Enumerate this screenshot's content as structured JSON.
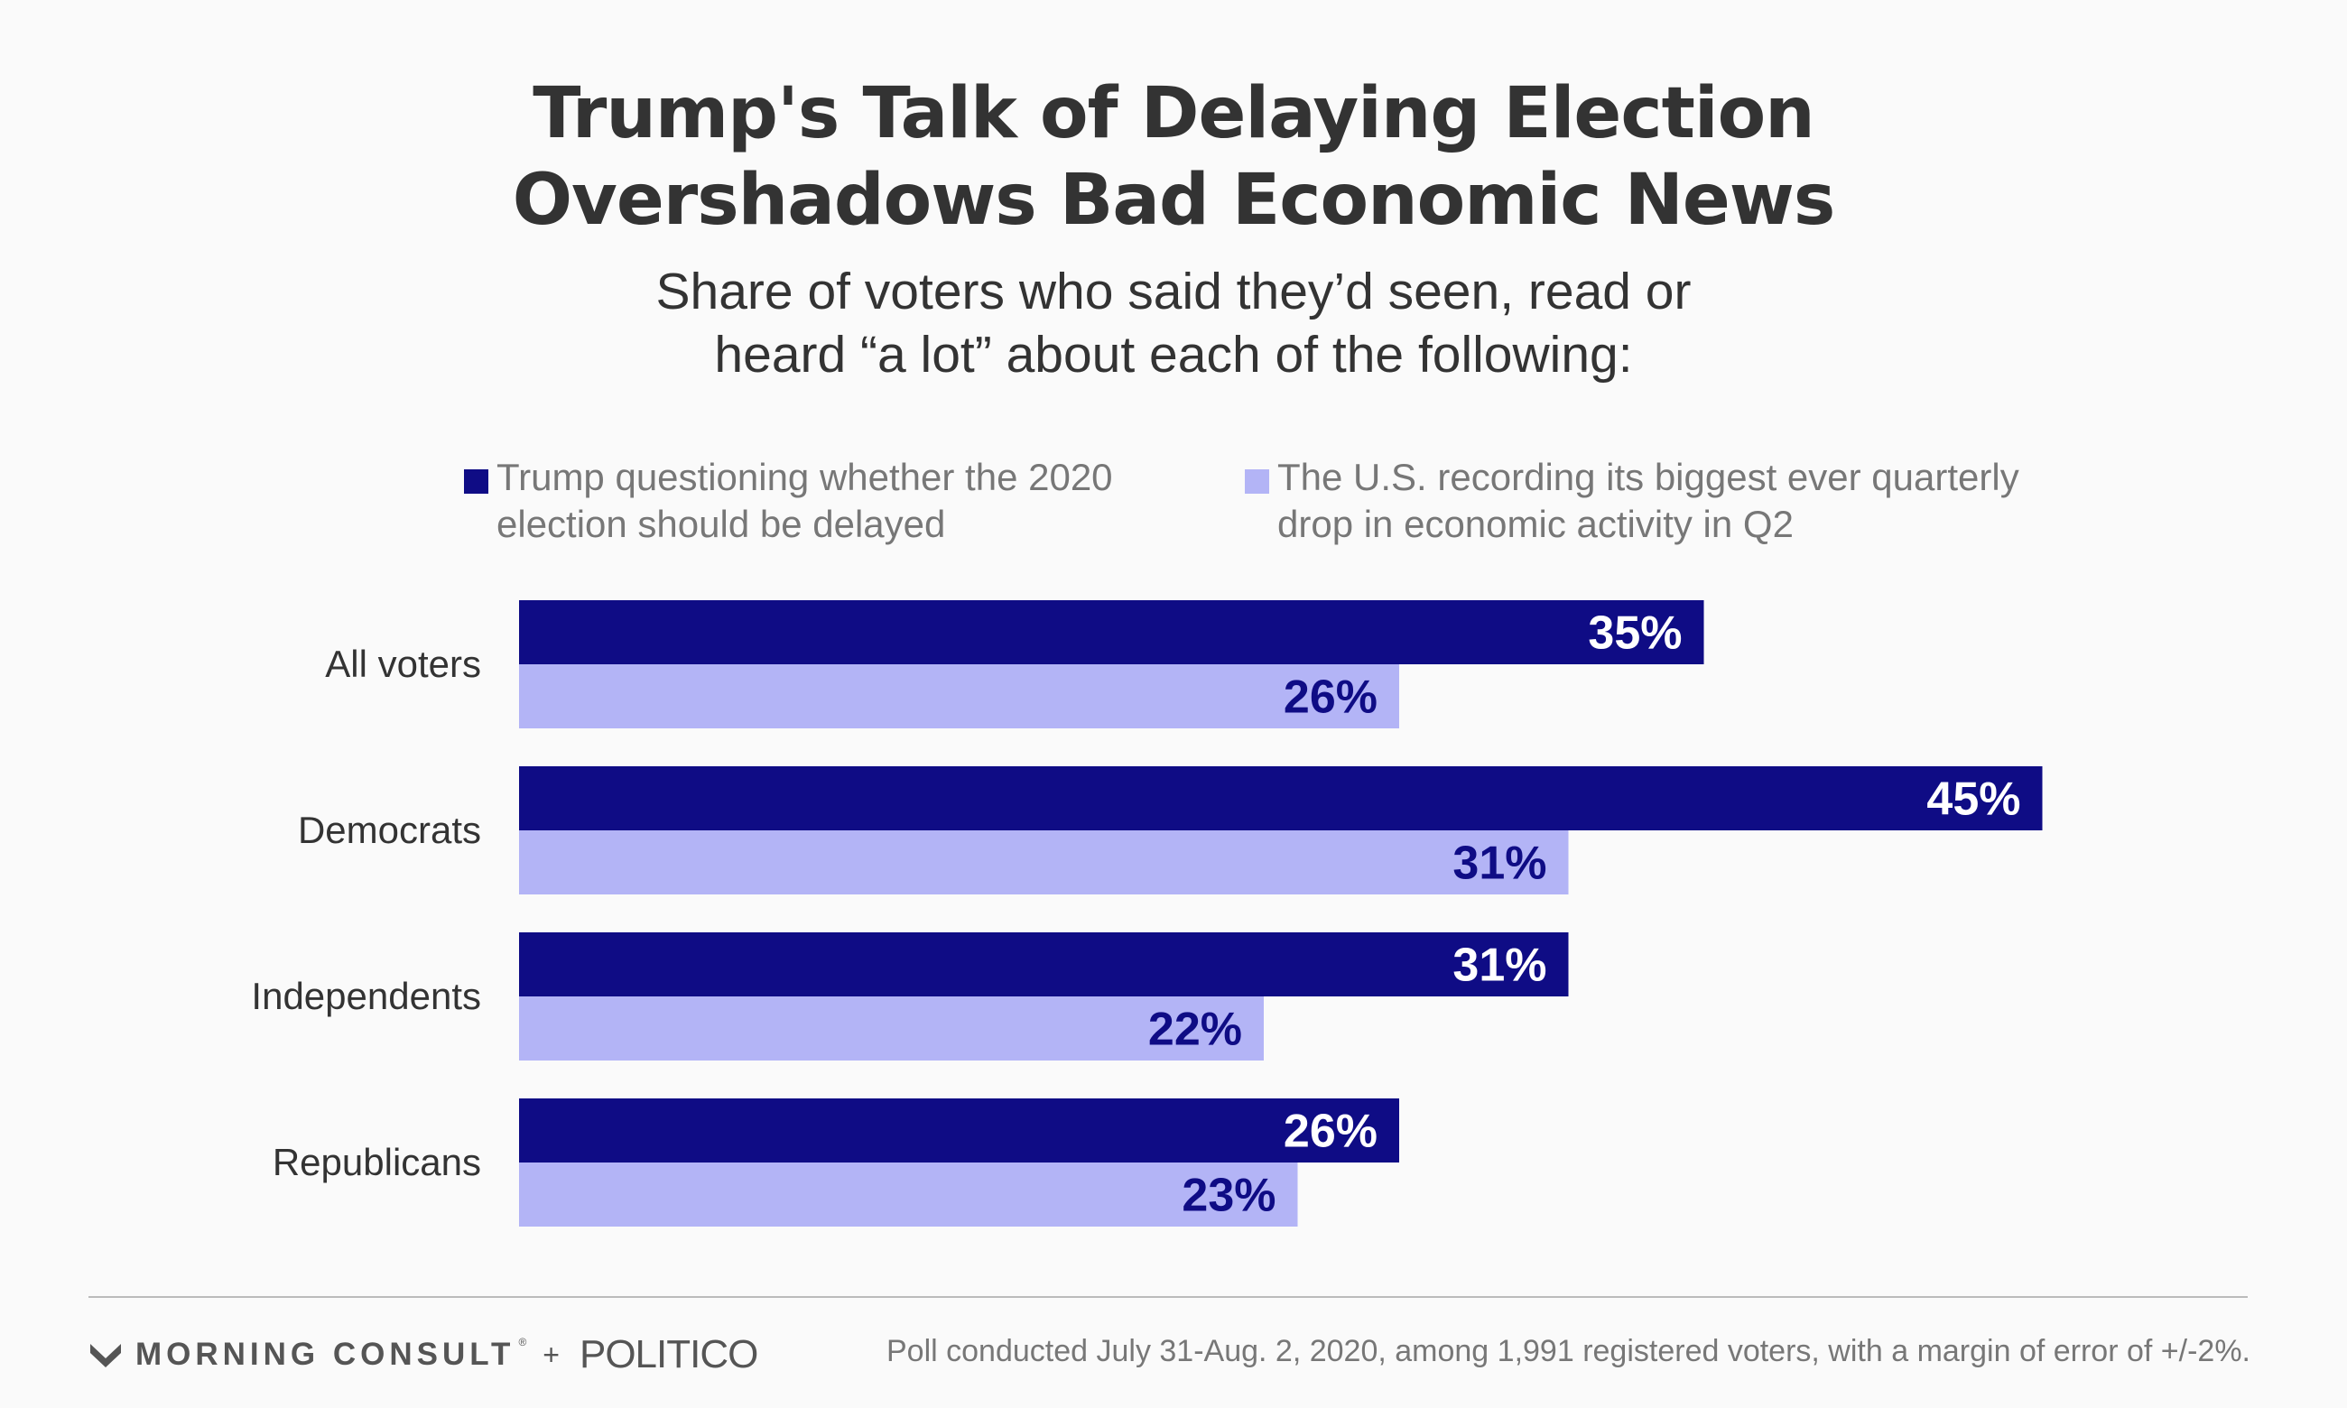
{
  "header": {
    "title_lines": [
      "Trump's Talk of Delaying Election",
      "Overshadows Bad Economic News"
    ],
    "subtitle_lines": [
      "Share of voters who said they’d seen, read or",
      "heard “a lot” about each of the following:"
    ]
  },
  "chart_data": {
    "type": "bar",
    "orientation": "horizontal",
    "categories": [
      "All voters",
      "Democrats",
      "Independents",
      "Republicans"
    ],
    "series": [
      {
        "name_lines": [
          "Trump questioning whether the 2020",
          "election should be delayed"
        ],
        "color": "#0f0c85",
        "label_color": "#ffffff",
        "values": [
          35,
          45,
          31,
          26
        ],
        "labels": [
          "35%",
          "45%",
          "31%",
          "26%"
        ]
      },
      {
        "name_lines": [
          "The U.S. recording its biggest ever quarterly",
          "drop in economic activity in Q2"
        ],
        "color": "#b3b4f6",
        "label_color": "#0f0c85",
        "values": [
          26,
          31,
          22,
          23
        ],
        "labels": [
          "26%",
          "31%",
          "22%",
          "23%"
        ]
      }
    ],
    "xlim": [
      0,
      45
    ],
    "grid": false,
    "legend_position": "top"
  },
  "footer": {
    "brand_left": "MORNING CONSULT",
    "brand_plus": "+",
    "brand_right": "POLITICO",
    "source": "Poll conducted July 31-Aug. 2, 2020, among 1,991 registered voters, with a margin of error of +/-2%."
  },
  "icons": {
    "brand_logo": "morning-consult-logo-icon"
  }
}
